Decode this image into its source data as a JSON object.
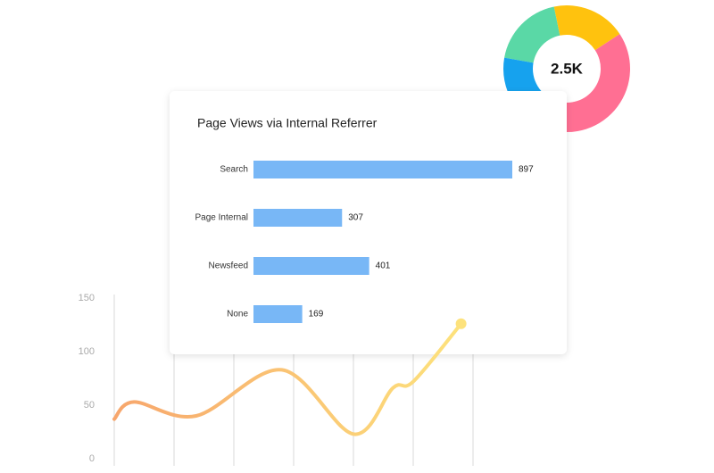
{
  "chart_data": [
    {
      "type": "pie",
      "center_label": "2.5K",
      "values": [
        19,
        19,
        39,
        23
      ],
      "colors": [
        "#5ad8a6",
        "#ffc20e",
        "#ff6f93",
        "#16a2ee"
      ]
    },
    {
      "type": "bar",
      "title": "Page Views via Internal Referrer",
      "categories": [
        "Search",
        "Page Internal",
        "Newsfeed",
        "None"
      ],
      "values": [
        897,
        307,
        401,
        169
      ],
      "color": "#78b7f6"
    },
    {
      "type": "line",
      "x": [
        0,
        0.33,
        1.37,
        2.8,
        4,
        4.66,
        5,
        5.8
      ],
      "values": [
        37,
        53,
        40,
        83,
        23,
        66,
        72,
        126
      ],
      "colors": [
        "#f7a66c",
        "#fde27c"
      ],
      "xlim": [
        0,
        6
      ],
      "xticks": [
        0,
        1,
        2,
        3,
        4,
        5,
        6
      ],
      "ylim": [
        0,
        150
      ],
      "yticks": [
        0,
        50,
        100,
        150
      ],
      "grid": true
    }
  ]
}
